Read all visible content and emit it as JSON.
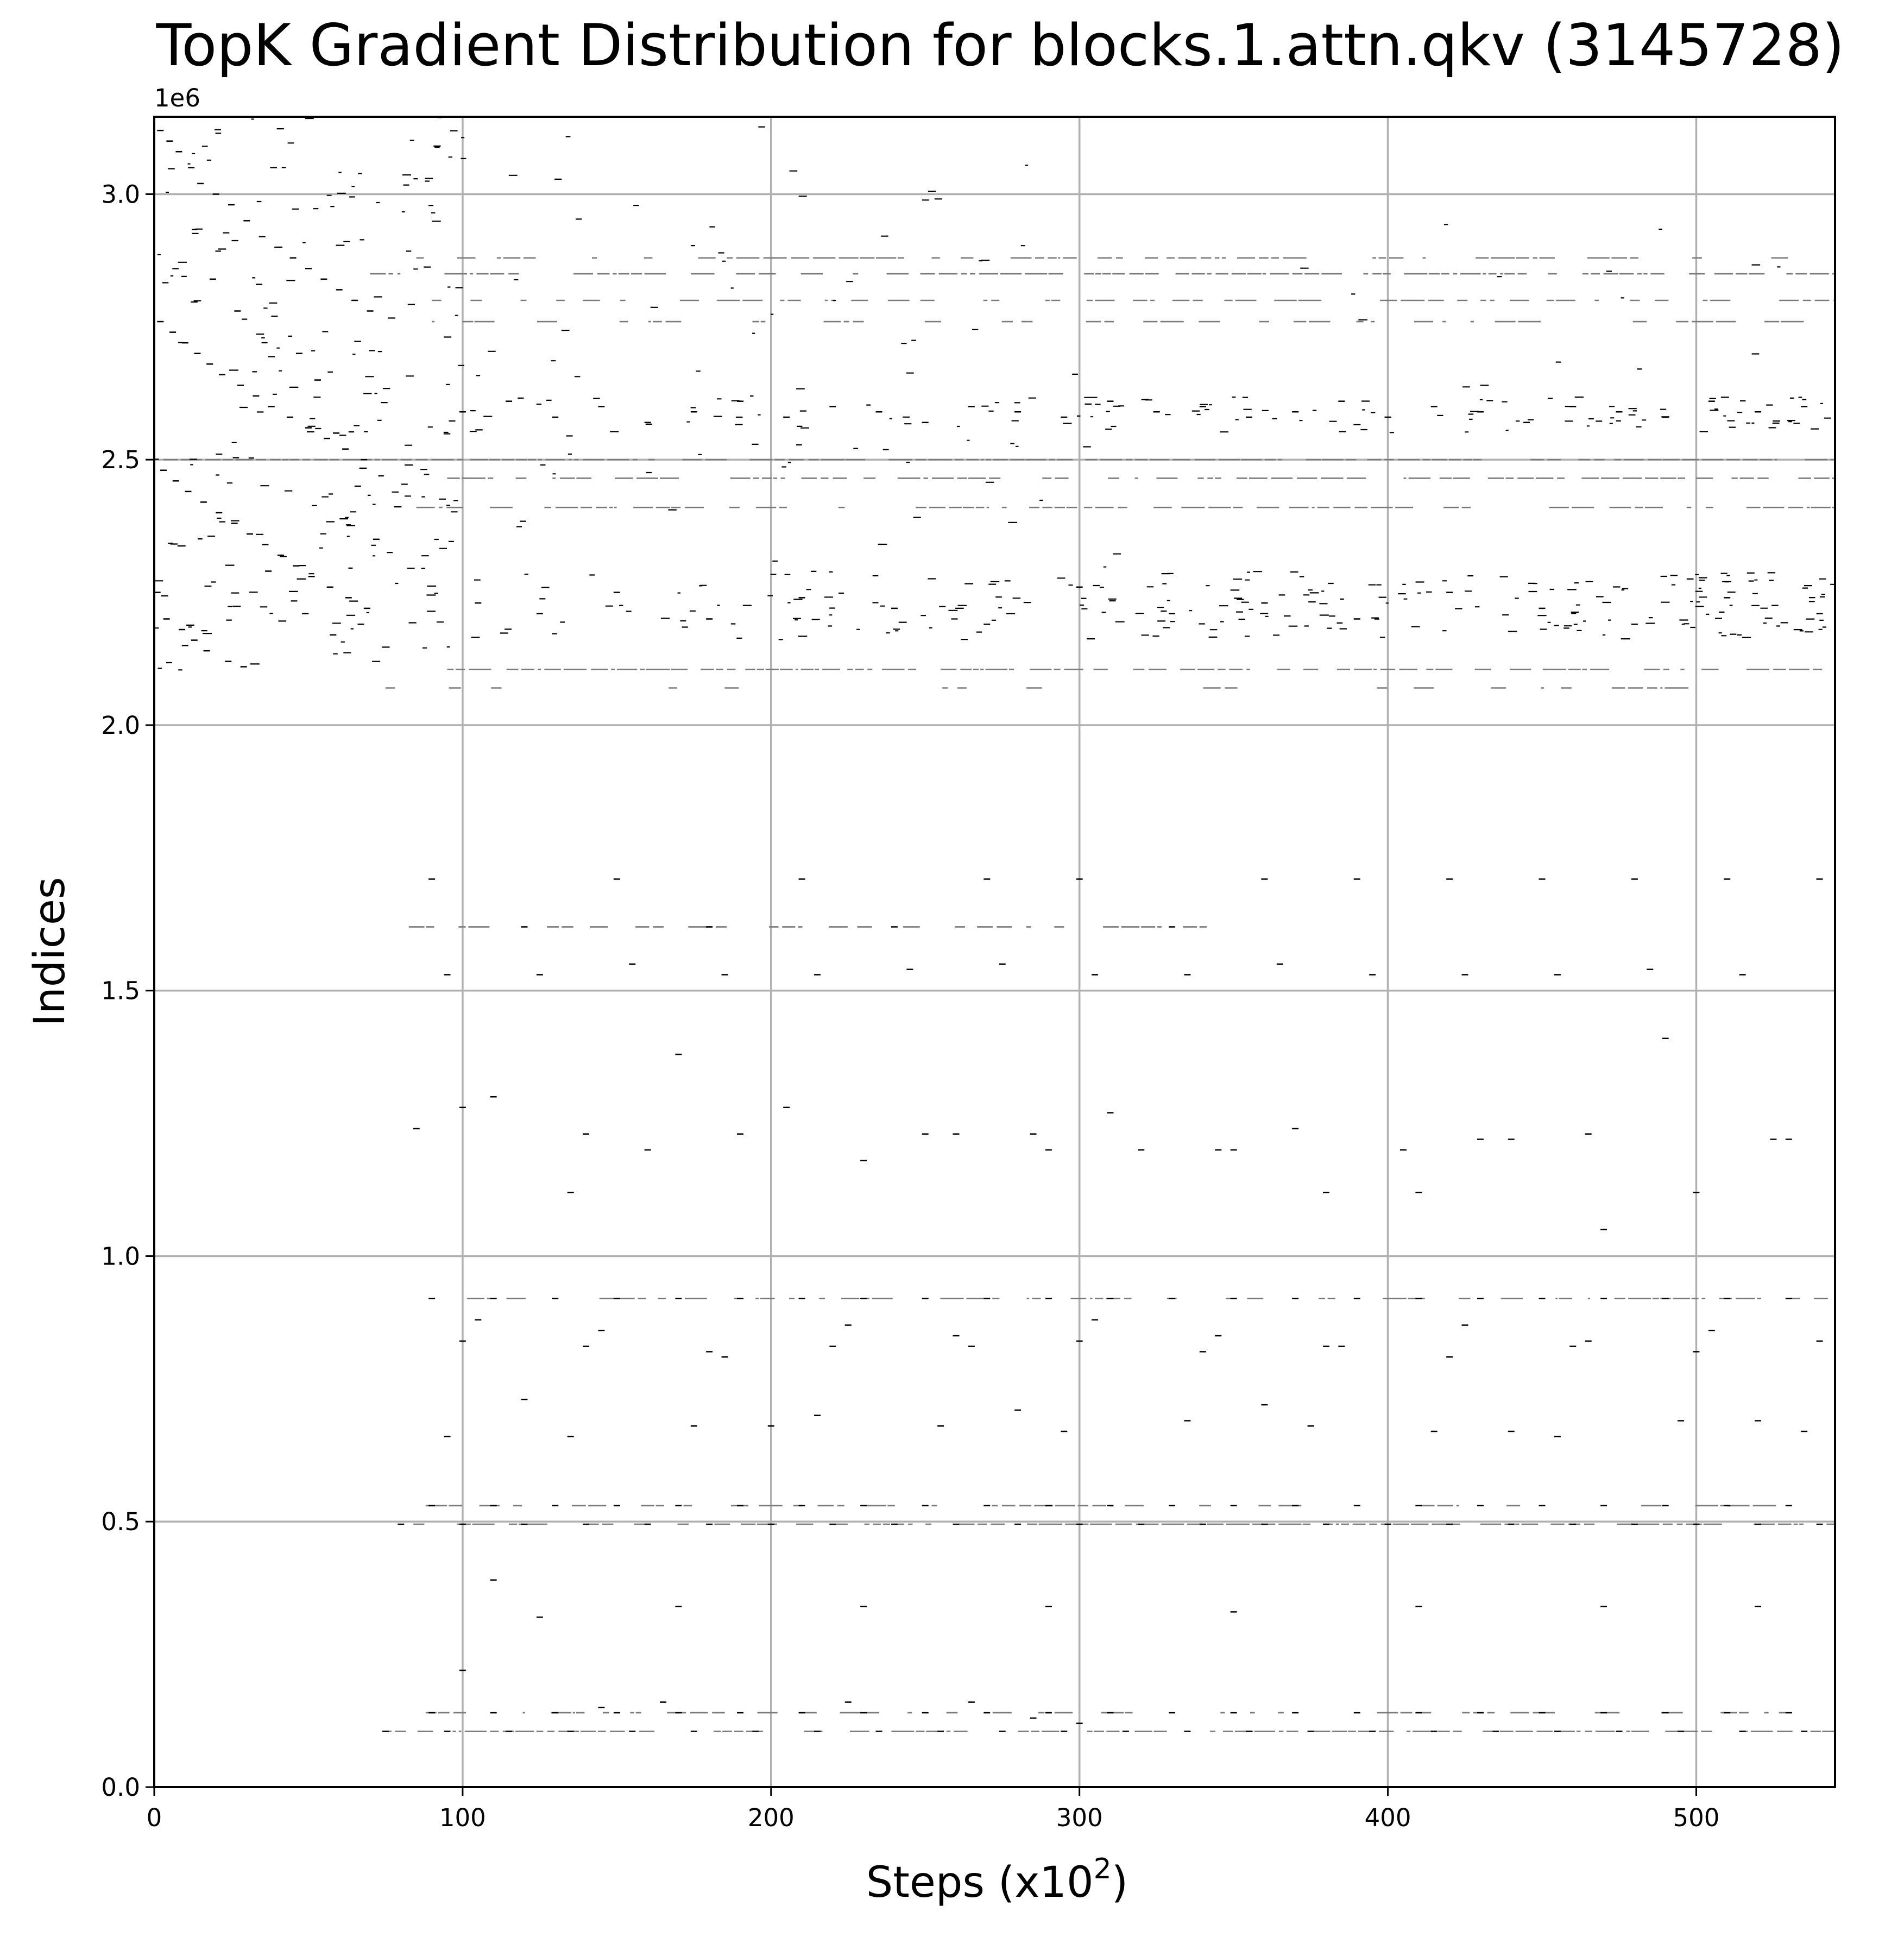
{
  "chart_data": {
    "type": "scatter",
    "title": "TopK Gradient Distribution for blocks.1.attn.qkv (3145728)",
    "xlabel": "Steps (x10",
    "xlabel_superscript": "2",
    "xlabel_suffix": ")",
    "ylabel": "Indices",
    "y_offset_text": "1e6",
    "xlim": [
      0,
      545
    ],
    "ylim": [
      0,
      3145728
    ],
    "xticks": [
      0,
      100,
      200,
      300,
      400,
      500
    ],
    "xtick_labels": [
      "0",
      "100",
      "200",
      "300",
      "400",
      "500"
    ],
    "yticks": [
      0,
      500000,
      1000000,
      1500000,
      2000000,
      2500000,
      3000000
    ],
    "ytick_labels": [
      "0.0",
      "0.5",
      "1.0",
      "1.5",
      "2.0",
      "2.5",
      "3.0"
    ],
    "grid": true,
    "marker": "short horizontal dash",
    "marker_color": "#000000",
    "series": [
      {
        "x": [
          2,
          5,
          8,
          12,
          15,
          20,
          25,
          30,
          35,
          40,
          45,
          50,
          55,
          60,
          65,
          70,
          2,
          6,
          10,
          14,
          18,
          22,
          28,
          33,
          38,
          44,
          50,
          56,
          62,
          68,
          3,
          7,
          11,
          16,
          21,
          26,
          31,
          36,
          41,
          46,
          51,
          57,
          63,
          69,
          4,
          9,
          13,
          17,
          24,
          29,
          34,
          39,
          47,
          53,
          59,
          66,
          72,
          1,
          10,
          19,
          27,
          37,
          49,
          58,
          67
        ],
        "y": [
          3120000,
          3100000,
          3080000,
          3050000,
          3020000,
          3000000,
          2980000,
          2950000,
          2920000,
          2900000,
          2880000,
          2860000,
          2840000,
          2820000,
          2800000,
          2780000,
          2760000,
          2740000,
          2720000,
          2700000,
          2680000,
          2660000,
          2640000,
          2620000,
          2600000,
          2580000,
          2560000,
          2540000,
          2520000,
          2500000,
          2480000,
          2460000,
          2440000,
          2420000,
          2400000,
          2380000,
          2360000,
          2340000,
          2320000,
          2300000,
          2280000,
          2260000,
          2240000,
          2220000,
          2200000,
          2180000,
          2160000,
          2140000,
          2120000,
          2110000,
          2830000,
          2770000,
          2700000,
          2650000,
          2550000,
          2450000,
          2350000,
          2250000,
          2150000,
          2840000,
          2780000,
          2290000,
          2210000,
          2170000,
          2190000
        ]
      },
      {
        "x": [
          100,
          115,
          130,
          145,
          160,
          175,
          190,
          205,
          220,
          235,
          250,
          265,
          280,
          295,
          310,
          325,
          340,
          355,
          370,
          385,
          400,
          415,
          430,
          445,
          460,
          475,
          490,
          505,
          520,
          535,
          105,
          125,
          150,
          180,
          210,
          240,
          270,
          300,
          330,
          360,
          390,
          420,
          450,
          480,
          510,
          540
        ],
        "y": [
          2590000,
          2610000,
          2580000,
          2600000,
          2570000,
          2590000,
          2610000,
          2580000,
          2600000,
          2590000,
          2570000,
          2600000,
          2590000,
          2580000,
          2610000,
          2590000,
          2600000,
          2580000,
          2590000,
          2610000,
          2580000,
          2600000,
          2590000,
          2570000,
          2600000,
          2590000,
          2580000,
          2610000,
          2590000,
          2600000,
          2230000,
          2210000,
          2250000,
          2200000,
          2240000,
          2220000,
          2190000,
          2260000,
          2210000,
          2230000,
          2200000,
          2250000,
          2220000,
          2190000,
          2240000,
          2210000
        ]
      },
      {
        "x": [
          90,
          120,
          150,
          180,
          210,
          240,
          270,
          300,
          330,
          360,
          390,
          420,
          450,
          480,
          510,
          540,
          95,
          125,
          155,
          185,
          215,
          245,
          275,
          305,
          335,
          365,
          395,
          425,
          455,
          485,
          515,
          100,
          140,
          160,
          190,
          230,
          260,
          290,
          320,
          350,
          380,
          410,
          440,
          470,
          500,
          530,
          110,
          170,
          250,
          310,
          370,
          430,
          490,
          85,
          135,
          205,
          285,
          345,
          405,
          465,
          525
        ],
        "y": [
          1710000,
          1620000,
          1710000,
          1620000,
          1710000,
          1620000,
          1710000,
          1710000,
          1620000,
          1710000,
          1710000,
          1710000,
          1710000,
          1710000,
          1710000,
          1710000,
          1530000,
          1530000,
          1550000,
          1530000,
          1530000,
          1540000,
          1550000,
          1530000,
          1530000,
          1550000,
          1530000,
          1530000,
          1530000,
          1540000,
          1530000,
          1280000,
          1230000,
          1200000,
          1230000,
          1180000,
          1230000,
          1200000,
          1200000,
          1200000,
          1120000,
          1120000,
          1220000,
          1050000,
          1120000,
          1220000,
          1300000,
          1380000,
          1230000,
          1270000,
          1240000,
          1220000,
          1410000,
          1240000,
          1120000,
          1280000,
          1230000,
          1200000,
          1200000,
          1230000,
          1220000
        ]
      },
      {
        "x": [
          90,
          110,
          130,
          150,
          170,
          190,
          210,
          230,
          250,
          270,
          290,
          310,
          330,
          350,
          370,
          390,
          410,
          430,
          450,
          470,
          490,
          510,
          530,
          100,
          140,
          180,
          220,
          260,
          300,
          340,
          380,
          420,
          460,
          500,
          540,
          95,
          135,
          175,
          215,
          255,
          295,
          335,
          375,
          415,
          455,
          495,
          535,
          105,
          145,
          185,
          225,
          265,
          305,
          345,
          385,
          425,
          465,
          505,
          120,
          200,
          280,
          360,
          440,
          520
        ],
        "y": [
          920000,
          920000,
          920000,
          920000,
          920000,
          920000,
          920000,
          920000,
          920000,
          920000,
          920000,
          920000,
          920000,
          920000,
          920000,
          920000,
          920000,
          920000,
          920000,
          920000,
          920000,
          920000,
          920000,
          840000,
          830000,
          820000,
          830000,
          850000,
          840000,
          820000,
          830000,
          810000,
          830000,
          820000,
          840000,
          660000,
          660000,
          680000,
          700000,
          680000,
          670000,
          690000,
          680000,
          670000,
          660000,
          690000,
          670000,
          880000,
          860000,
          810000,
          870000,
          830000,
          880000,
          850000,
          830000,
          870000,
          840000,
          860000,
          730000,
          680000,
          710000,
          720000,
          670000,
          690000
        ]
      },
      {
        "x": [
          90,
          110,
          130,
          150,
          170,
          190,
          210,
          230,
          250,
          270,
          290,
          310,
          330,
          350,
          370,
          390,
          410,
          430,
          450,
          470,
          490,
          510,
          530,
          80,
          100,
          120,
          140,
          160,
          180,
          200,
          220,
          240,
          260,
          280,
          300,
          320,
          340,
          360,
          380,
          400,
          420,
          440,
          460,
          480,
          500,
          520,
          540,
          110,
          170,
          230,
          290,
          350,
          410,
          470,
          520
        ],
        "y": [
          530000,
          530000,
          530000,
          530000,
          530000,
          530000,
          530000,
          530000,
          530000,
          530000,
          530000,
          530000,
          530000,
          530000,
          530000,
          530000,
          530000,
          530000,
          530000,
          530000,
          530000,
          530000,
          530000,
          495000,
          495000,
          495000,
          495000,
          495000,
          495000,
          495000,
          495000,
          495000,
          495000,
          495000,
          495000,
          495000,
          495000,
          495000,
          495000,
          495000,
          495000,
          495000,
          495000,
          495000,
          495000,
          495000,
          495000,
          390000,
          340000,
          340000,
          340000,
          330000,
          340000,
          340000,
          340000
        ]
      },
      {
        "x": [
          90,
          110,
          130,
          150,
          170,
          190,
          210,
          230,
          250,
          270,
          290,
          310,
          330,
          350,
          370,
          390,
          410,
          430,
          450,
          470,
          490,
          510,
          530,
          75,
          95,
          115,
          135,
          155,
          175,
          195,
          215,
          235,
          255,
          275,
          295,
          315,
          335,
          355,
          375,
          395,
          415,
          435,
          455,
          475,
          495,
          515,
          535,
          100,
          125,
          145,
          165,
          225,
          265,
          285,
          300
        ],
        "y": [
          140000,
          140000,
          140000,
          140000,
          140000,
          140000,
          140000,
          140000,
          140000,
          140000,
          140000,
          140000,
          140000,
          140000,
          140000,
          140000,
          140000,
          140000,
          140000,
          140000,
          140000,
          140000,
          140000,
          105000,
          105000,
          105000,
          105000,
          105000,
          105000,
          105000,
          105000,
          105000,
          105000,
          105000,
          105000,
          105000,
          105000,
          105000,
          105000,
          105000,
          105000,
          105000,
          105000,
          105000,
          105000,
          105000,
          105000,
          220000,
          320000,
          150000,
          160000,
          160000,
          160000,
          130000,
          120000
        ]
      }
    ],
    "bands": [
      {
        "y": 2880000,
        "x_from": 85,
        "x_to": 545,
        "density": 0.55
      },
      {
        "y": 2850000,
        "x_from": 70,
        "x_to": 545,
        "density": 0.75
      },
      {
        "y": 2800000,
        "x_from": 90,
        "x_to": 545,
        "density": 0.55
      },
      {
        "y": 2760000,
        "x_from": 90,
        "x_to": 545,
        "density": 0.35
      },
      {
        "y": 2500000,
        "x_from": 0,
        "x_to": 545,
        "density": 0.9
      },
      {
        "y": 2465000,
        "x_from": 95,
        "x_to": 545,
        "density": 0.65
      },
      {
        "y": 2410000,
        "x_from": 85,
        "x_to": 545,
        "density": 0.65
      },
      {
        "y": 2105000,
        "x_from": 95,
        "x_to": 545,
        "density": 0.8
      },
      {
        "y": 2070000,
        "x_from": 75,
        "x_to": 535,
        "density": 0.2
      },
      {
        "y": 1620000,
        "x_from": 78,
        "x_to": 360,
        "density": 0.4
      },
      {
        "y": 920000,
        "x_from": 84,
        "x_to": 545,
        "density": 0.55
      },
      {
        "y": 530000,
        "x_from": 88,
        "x_to": 545,
        "density": 0.5
      },
      {
        "y": 495000,
        "x_from": 76,
        "x_to": 545,
        "density": 0.75
      },
      {
        "y": 140000,
        "x_from": 88,
        "x_to": 545,
        "density": 0.55
      },
      {
        "y": 105000,
        "x_from": 74,
        "x_to": 545,
        "density": 0.75
      }
    ],
    "dense_regions": [
      {
        "x_from": 0,
        "x_to": 100,
        "y_from": 2100000,
        "y_to": 3145728,
        "density": 0.35
      },
      {
        "x_from": 100,
        "x_to": 300,
        "y_from": 2550000,
        "y_to": 2620000,
        "density": 0.4
      },
      {
        "x_from": 300,
        "x_to": 545,
        "y_from": 2550000,
        "y_to": 2620000,
        "density": 0.85
      },
      {
        "x_from": 100,
        "x_to": 300,
        "y_from": 2160000,
        "y_to": 2290000,
        "density": 0.45
      },
      {
        "x_from": 300,
        "x_to": 545,
        "y_from": 2160000,
        "y_to": 2290000,
        "density": 0.9
      },
      {
        "x_from": 100,
        "x_to": 300,
        "y_from": 2620000,
        "y_to": 3145728,
        "density": 0.06
      },
      {
        "x_from": 300,
        "x_to": 545,
        "y_from": 2620000,
        "y_to": 2960000,
        "density": 0.03
      },
      {
        "x_from": 100,
        "x_to": 320,
        "y_from": 2290000,
        "y_to": 2550000,
        "density": 0.08
      }
    ]
  }
}
